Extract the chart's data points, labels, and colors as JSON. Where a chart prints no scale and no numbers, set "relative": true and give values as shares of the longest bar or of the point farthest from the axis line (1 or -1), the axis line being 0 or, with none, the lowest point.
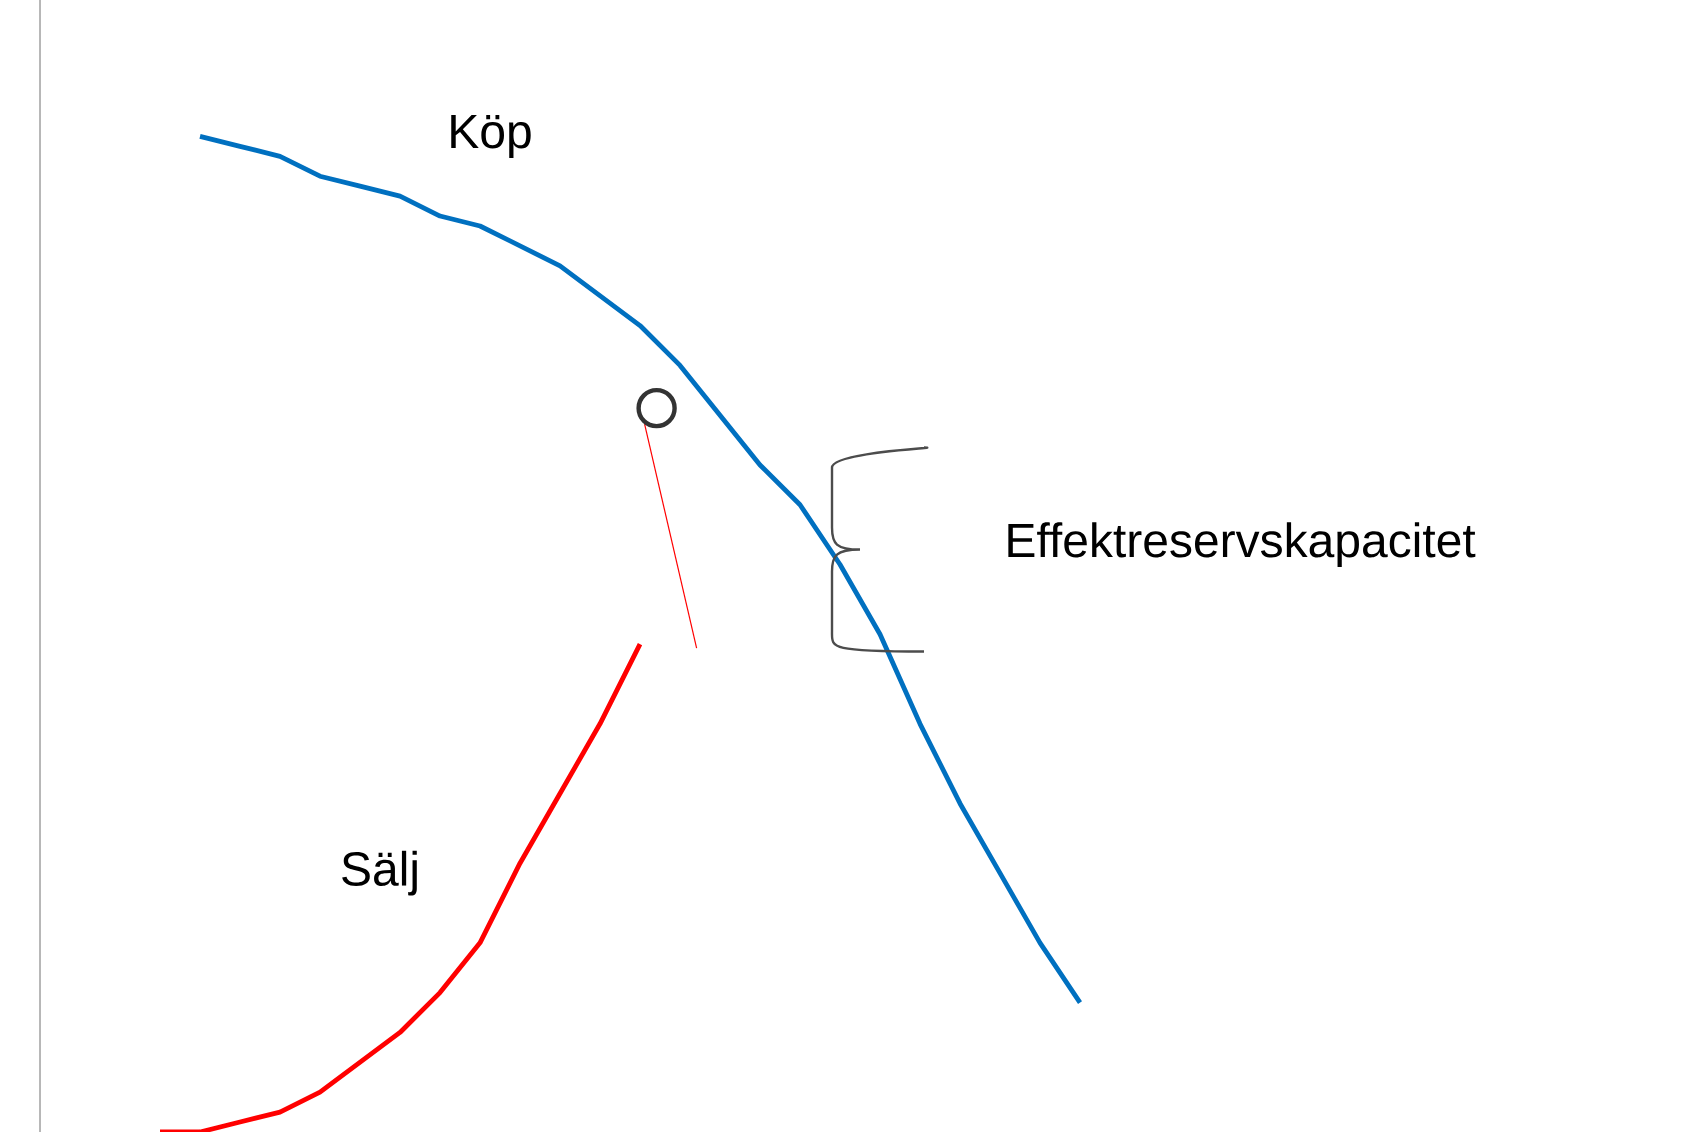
{
  "chart_data": {
    "type": "line",
    "relative": true,
    "legend": false,
    "categories": [
      null,
      null,
      null,
      null,
      null,
      null,
      null,
      null,
      null,
      null,
      null,
      null,
      null,
      null,
      null,
      null,
      null,
      null,
      null,
      null,
      null,
      null,
      null,
      null
    ],
    "series": [
      {
        "name": "Köp",
        "color": "#0070c0",
        "values": [
          null,
          1,
          0.99,
          0.98,
          0.96,
          0.95,
          0.94,
          0.92,
          0.91,
          0.89,
          0.87,
          0.84,
          0.81,
          0.77,
          0.72,
          0.67,
          0.63,
          0.57,
          0.5,
          0.41,
          0.33,
          0.26,
          0.19,
          0.13
        ]
      },
      {
        "name": "Sälj",
        "color": "#ff0000",
        "values": [
          0,
          0,
          0.01,
          0.02,
          0.04,
          0.07,
          0.1,
          0.14,
          0.19,
          0.27,
          0.34,
          0.41,
          0.49,
          null,
          null,
          null,
          null,
          null,
          null,
          null,
          null,
          null,
          null,
          null
        ]
      }
    ],
    "annotations": [
      "Effektreservskapacitet"
    ]
  }
}
